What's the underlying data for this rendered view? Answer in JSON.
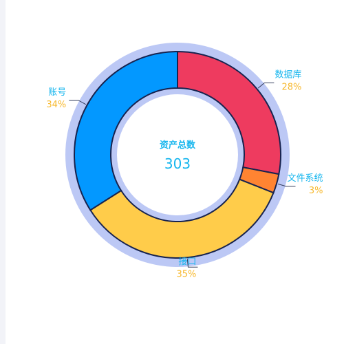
{
  "chart_data": {
    "type": "pie",
    "variant": "donut",
    "center": {
      "title": "资产总数",
      "value": "303"
    },
    "slices": [
      {
        "name": "数据库",
        "percent": "28%",
        "value": 28,
        "color": "#ee3b5f"
      },
      {
        "name": "文件系统",
        "percent": "3%",
        "value": 3,
        "color": "#ff8432"
      },
      {
        "name": "接口",
        "percent": "35%",
        "value": 35,
        "color": "#ffcc4a"
      },
      {
        "name": "账号",
        "percent": "34%",
        "value": 34,
        "color": "#0398ff"
      }
    ],
    "start_direction": "top",
    "clockwise": true,
    "legend": "none"
  },
  "colors": {
    "ring_halo": "#bcc8f5",
    "slice_border": "#17234f",
    "label_name": "#17b6ee",
    "label_percent": "#f7b92f",
    "center_title": "#17b6ee",
    "center_value": "#17b6ee",
    "leader_line": "#333d5c"
  }
}
